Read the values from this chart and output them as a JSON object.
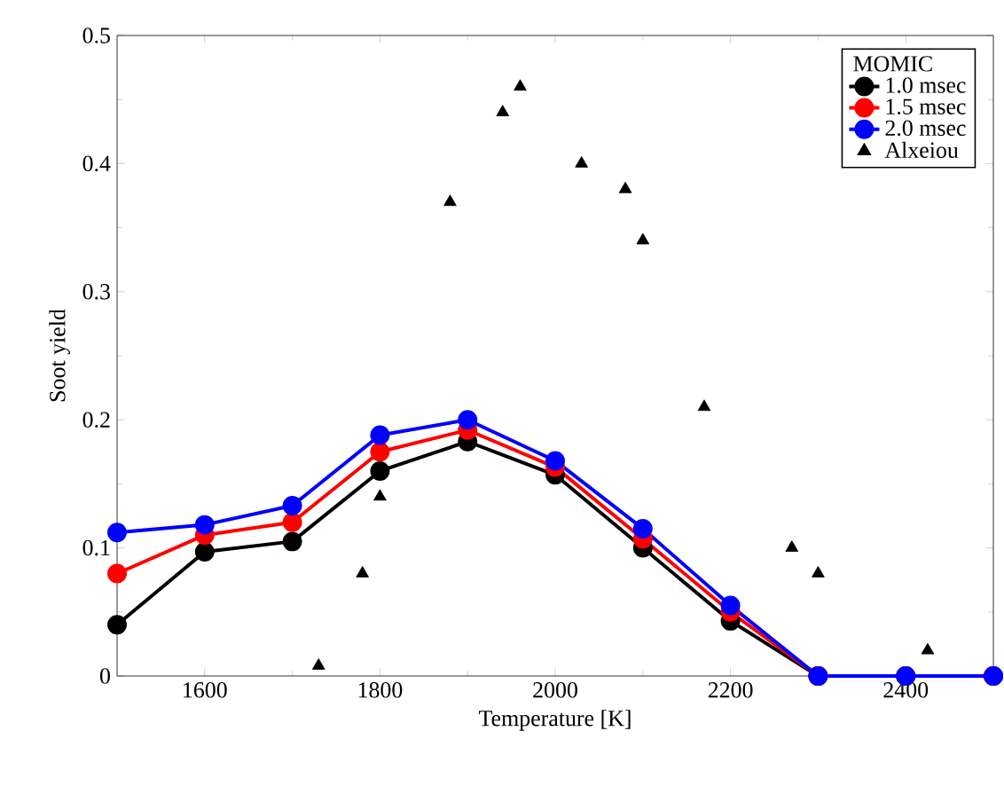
{
  "chart_data": {
    "type": "line",
    "xlabel": "Temperature [K]",
    "ylabel": "Soot yield",
    "legend_title": "MOMIC",
    "legend": "top right",
    "xlim": [
      1500,
      2500
    ],
    "ylim": [
      0,
      0.5
    ],
    "xticks": [
      1600,
      1800,
      2000,
      2200,
      2400
    ],
    "yticks": [
      0,
      0.1,
      0.2,
      0.3,
      0.4,
      0.5
    ],
    "grid": false,
    "series": [
      {
        "name": "1.0 msec",
        "marker": "circle",
        "color": "#000000",
        "x": [
          1500,
          1600,
          1700,
          1800,
          1900,
          2000,
          2100,
          2200,
          2300,
          2400,
          2500
        ],
        "values": [
          0.04,
          0.097,
          0.105,
          0.16,
          0.183,
          0.157,
          0.1,
          0.043,
          0,
          0,
          0
        ]
      },
      {
        "name": "1.5 msec",
        "marker": "circle",
        "color": "#ff0000",
        "x": [
          1500,
          1600,
          1700,
          1800,
          1900,
          2000,
          2100,
          2200,
          2300,
          2400,
          2500
        ],
        "values": [
          0.08,
          0.11,
          0.12,
          0.175,
          0.192,
          0.163,
          0.107,
          0.05,
          0,
          0,
          0
        ]
      },
      {
        "name": "2.0 msec",
        "marker": "circle",
        "color": "#0000ff",
        "x": [
          1500,
          1600,
          1700,
          1800,
          1900,
          2000,
          2100,
          2200,
          2300,
          2400,
          2500
        ],
        "values": [
          0.112,
          0.118,
          0.133,
          0.188,
          0.2,
          0.168,
          0.115,
          0.055,
          0,
          0,
          0
        ]
      },
      {
        "name": "Alxeiou",
        "type": "scatter",
        "marker": "triangle",
        "color": "#000000",
        "x": [
          1730,
          1780,
          1800,
          1880,
          1940,
          1960,
          2030,
          2080,
          2100,
          2170,
          2270,
          2300,
          2425
        ],
        "values": [
          0.008,
          0.08,
          0.14,
          0.37,
          0.44,
          0.46,
          0.4,
          0.38,
          0.34,
          0.21,
          0.1,
          0.08,
          0.02
        ]
      }
    ]
  }
}
